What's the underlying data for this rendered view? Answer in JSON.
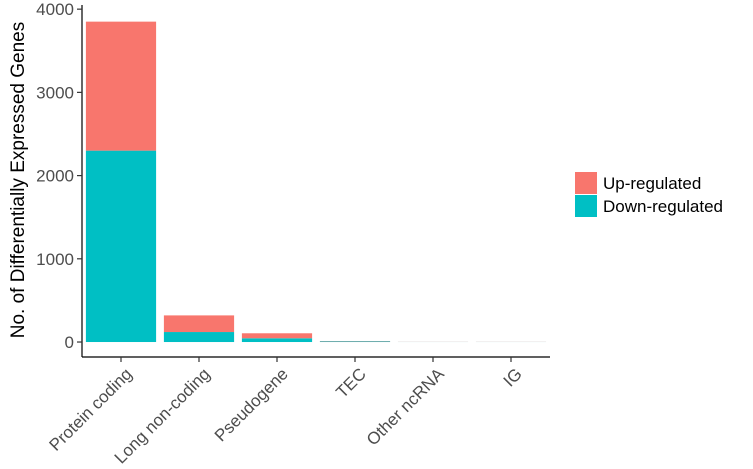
{
  "chart_data": {
    "type": "bar",
    "stacked": true,
    "title": "",
    "xlabel": "",
    "ylabel": "No. of Differentially Expressed Genes",
    "ylim": [
      -180,
      4050
    ],
    "yticks": [
      0,
      1000,
      2000,
      3000,
      4000
    ],
    "yticklabels": [
      "0",
      "1000",
      "2000",
      "3000",
      "4000"
    ],
    "categories": [
      "Protein coding",
      "Long non-coding",
      "Pseudogene",
      "TEC",
      "Other ncRNA",
      "IG"
    ],
    "series": [
      {
        "name": "Down-regulated",
        "color": "#00BFC4",
        "values": [
          2300,
          120,
          45,
          8,
          1,
          1
        ]
      },
      {
        "name": "Up-regulated",
        "color": "#F8766D",
        "values": [
          1550,
          200,
          60,
          4,
          1,
          1
        ]
      }
    ],
    "legend": {
      "position": "right",
      "entries": [
        {
          "label": "Up-regulated",
          "color": "#F8766D"
        },
        {
          "label": "Down-regulated",
          "color": "#00BFC4"
        }
      ]
    },
    "grid": false
  }
}
